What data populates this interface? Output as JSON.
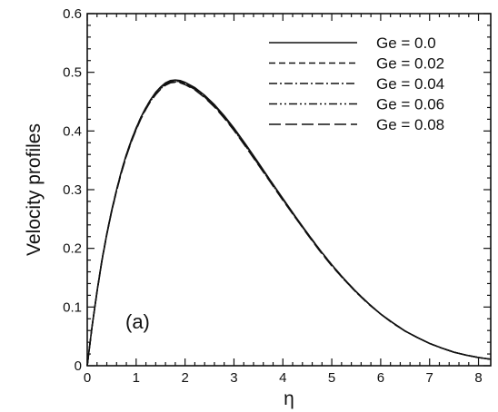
{
  "chart_data": {
    "type": "line",
    "title": "",
    "xlabel": "η",
    "ylabel": "Velocity profiles",
    "xlim": [
      0,
      8.25
    ],
    "ylim": [
      0,
      0.6
    ],
    "x_ticks": [
      "0",
      "1",
      "2",
      "3",
      "4",
      "5",
      "6",
      "7",
      "8"
    ],
    "y_ticks": [
      "0",
      "0.1",
      "0.2",
      "0.3",
      "0.4",
      "0.5",
      "0.6"
    ],
    "grid": false,
    "legend_position": "top-right",
    "annotation": "(a)",
    "x": [
      0,
      0.1,
      0.2,
      0.3,
      0.4,
      0.5,
      0.6,
      0.7,
      0.8,
      0.9,
      1.0,
      1.1,
      1.2,
      1.3,
      1.4,
      1.5,
      1.6,
      1.7,
      1.8,
      1.9,
      2.0,
      2.2,
      2.4,
      2.6,
      2.8,
      3.0,
      3.25,
      3.5,
      3.75,
      4.0,
      4.25,
      4.5,
      4.75,
      5.0,
      5.25,
      5.5,
      5.75,
      6.0,
      6.25,
      6.5,
      6.75,
      7.0,
      7.25,
      7.5,
      7.75,
      8.0,
      8.25
    ],
    "series": [
      {
        "name": "Ge = 0.0",
        "style": "solid",
        "values": [
          0,
          0.068,
          0.127,
          0.18,
          0.225,
          0.265,
          0.3,
          0.332,
          0.36,
          0.384,
          0.405,
          0.424,
          0.44,
          0.454,
          0.466,
          0.475,
          0.482,
          0.486,
          0.487,
          0.486,
          0.483,
          0.474,
          0.461,
          0.445,
          0.426,
          0.405,
          0.376,
          0.346,
          0.315,
          0.285,
          0.255,
          0.226,
          0.198,
          0.172,
          0.148,
          0.126,
          0.106,
          0.088,
          0.073,
          0.059,
          0.048,
          0.038,
          0.03,
          0.023,
          0.018,
          0.014,
          0.011
        ]
      },
      {
        "name": "Ge = 0.02",
        "style": "dashed",
        "values": [
          0,
          0.068,
          0.127,
          0.18,
          0.225,
          0.265,
          0.3,
          0.332,
          0.36,
          0.384,
          0.405,
          0.424,
          0.44,
          0.454,
          0.465,
          0.474,
          0.481,
          0.485,
          0.486,
          0.485,
          0.482,
          0.473,
          0.46,
          0.444,
          0.425,
          0.404,
          0.375,
          0.345,
          0.315,
          0.284,
          0.254,
          0.226,
          0.198,
          0.172,
          0.148,
          0.126,
          0.106,
          0.088,
          0.073,
          0.059,
          0.048,
          0.038,
          0.03,
          0.023,
          0.018,
          0.014,
          0.011
        ]
      },
      {
        "name": "Ge = 0.04",
        "style": "dashdot",
        "values": [
          0,
          0.068,
          0.126,
          0.179,
          0.224,
          0.264,
          0.299,
          0.331,
          0.359,
          0.383,
          0.404,
          0.423,
          0.439,
          0.453,
          0.464,
          0.473,
          0.48,
          0.484,
          0.485,
          0.484,
          0.481,
          0.472,
          0.459,
          0.443,
          0.424,
          0.403,
          0.374,
          0.344,
          0.314,
          0.283,
          0.254,
          0.225,
          0.197,
          0.171,
          0.147,
          0.126,
          0.106,
          0.088,
          0.073,
          0.059,
          0.048,
          0.038,
          0.03,
          0.023,
          0.018,
          0.014,
          0.011
        ]
      },
      {
        "name": "Ge = 0.06",
        "style": "dashdotdot",
        "values": [
          0,
          0.067,
          0.126,
          0.179,
          0.224,
          0.263,
          0.298,
          0.33,
          0.358,
          0.382,
          0.403,
          0.422,
          0.438,
          0.452,
          0.463,
          0.472,
          0.479,
          0.483,
          0.484,
          0.483,
          0.48,
          0.471,
          0.458,
          0.442,
          0.423,
          0.402,
          0.373,
          0.343,
          0.313,
          0.283,
          0.253,
          0.225,
          0.197,
          0.171,
          0.147,
          0.125,
          0.106,
          0.088,
          0.073,
          0.059,
          0.048,
          0.038,
          0.03,
          0.023,
          0.018,
          0.014,
          0.011
        ]
      },
      {
        "name": "Ge = 0.08",
        "style": "longdash",
        "values": [
          0,
          0.067,
          0.125,
          0.178,
          0.223,
          0.263,
          0.298,
          0.329,
          0.357,
          0.381,
          0.402,
          0.421,
          0.437,
          0.451,
          0.462,
          0.471,
          0.478,
          0.482,
          0.483,
          0.482,
          0.479,
          0.47,
          0.457,
          0.441,
          0.422,
          0.401,
          0.372,
          0.342,
          0.312,
          0.282,
          0.253,
          0.224,
          0.196,
          0.17,
          0.147,
          0.125,
          0.105,
          0.088,
          0.072,
          0.059,
          0.048,
          0.038,
          0.03,
          0.023,
          0.018,
          0.014,
          0.011
        ]
      }
    ]
  }
}
